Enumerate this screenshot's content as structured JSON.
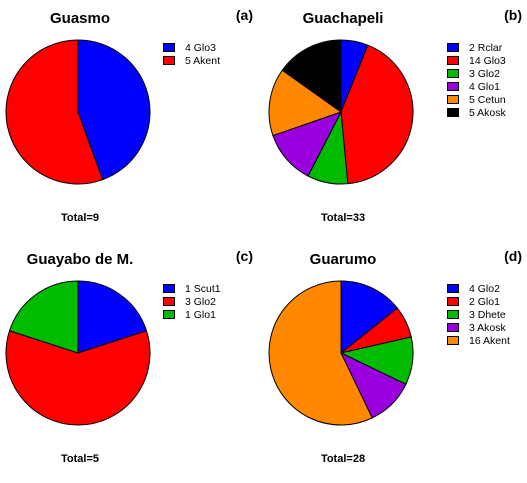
{
  "chart_data": [
    {
      "type": "pie",
      "title": "Guasmo",
      "panel_label": "(a)",
      "total_label": "Total=9",
      "slices": [
        {
          "label": "4 Glo3",
          "value": 4,
          "color": "#0000ff"
        },
        {
          "label": "5 Akent",
          "value": 5,
          "color": "#ff0000"
        }
      ]
    },
    {
      "type": "pie",
      "title": "Guachapeli",
      "panel_label": "(b)",
      "total_label": "Total=33",
      "slices": [
        {
          "label": "2 Rclar",
          "value": 2,
          "color": "#0000ff"
        },
        {
          "label": "14 Glo3",
          "value": 14,
          "color": "#ff0000"
        },
        {
          "label": "3 Glo2",
          "value": 3,
          "color": "#00bb00"
        },
        {
          "label": "4 Glo1",
          "value": 4,
          "color": "#9900dd"
        },
        {
          "label": "5 Cetun",
          "value": 5,
          "color": "#ff8800"
        },
        {
          "label": "5 Akosk",
          "value": 5,
          "color": "#000000"
        }
      ]
    },
    {
      "type": "pie",
      "title": "Guayabo de M.",
      "panel_label": "(c)",
      "total_label": "Total=5",
      "slices": [
        {
          "label": "1 Scut1",
          "value": 1,
          "color": "#0000ff"
        },
        {
          "label": "3 Glo2",
          "value": 3,
          "color": "#ff0000"
        },
        {
          "label": "1 Glo1",
          "value": 1,
          "color": "#00bb00"
        }
      ]
    },
    {
      "type": "pie",
      "title": "Guarumo",
      "panel_label": "(d)",
      "total_label": "Total=28",
      "slices": [
        {
          "label": "4 Glo2",
          "value": 4,
          "color": "#0000ff"
        },
        {
          "label": "2 Glo1",
          "value": 2,
          "color": "#ff0000"
        },
        {
          "label": "3 Dhete",
          "value": 3,
          "color": "#00bb00"
        },
        {
          "label": "3 Akosk",
          "value": 3,
          "color": "#9900dd"
        },
        {
          "label": "16 Akent",
          "value": 16,
          "color": "#ff8800"
        }
      ]
    }
  ]
}
